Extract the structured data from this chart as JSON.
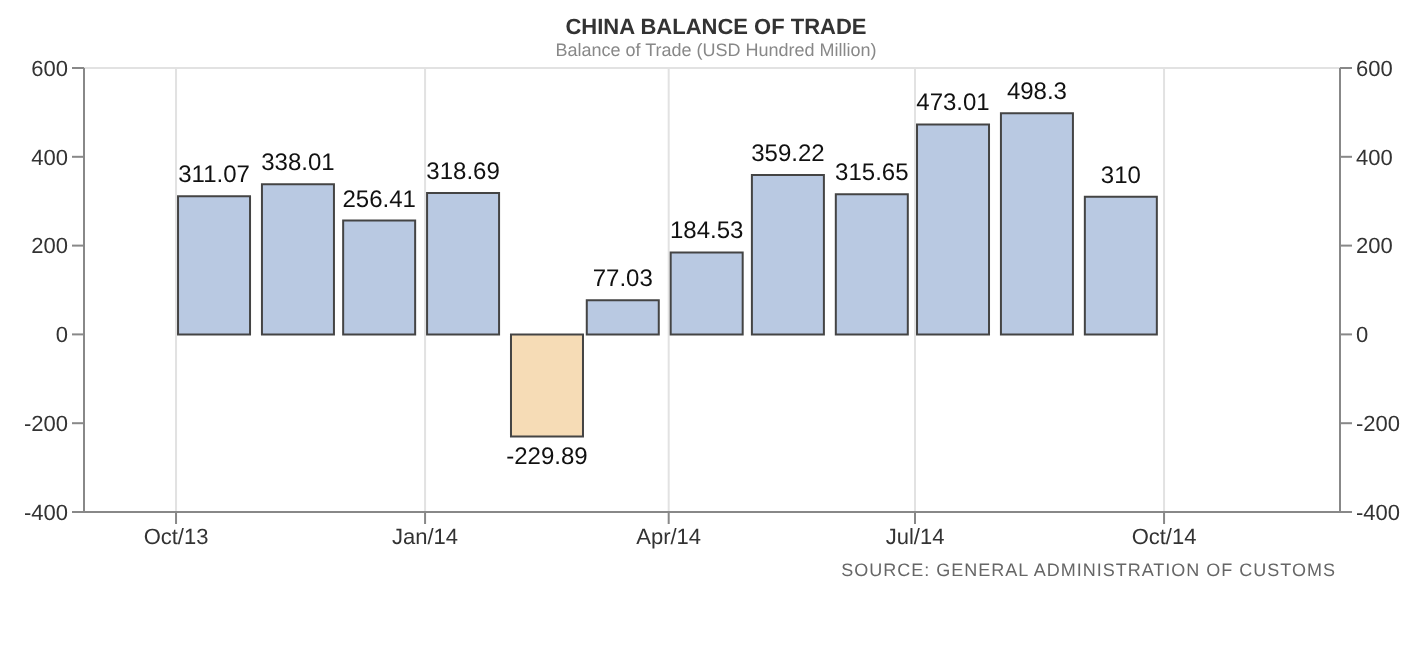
{
  "chart_data": {
    "type": "bar",
    "title": "CHINA BALANCE OF TRADE",
    "subtitle": "Balance of Trade (USD Hundred Million)",
    "x": [
      "2013-10-15",
      "2013-11-15",
      "2013-12-15",
      "2014-01-15",
      "2014-02-15",
      "2014-03-15",
      "2014-04-15",
      "2014-05-15",
      "2014-06-15",
      "2014-07-15",
      "2014-08-15",
      "2014-09-15"
    ],
    "values": [
      311.07,
      338.01,
      256.41,
      318.69,
      -229.89,
      77.03,
      184.53,
      359.22,
      315.65,
      473.01,
      498.3,
      310
    ],
    "colors": [
      "#b9c9e2",
      "#b9c9e2",
      "#b9c9e2",
      "#b9c9e2",
      "#f6dcb6",
      "#b9c9e2",
      "#b9c9e2",
      "#b9c9e2",
      "#b9c9e2",
      "#b9c9e2",
      "#b9c9e2",
      "#b9c9e2"
    ],
    "data_labels": true,
    "xlim": [
      "2013-08-28",
      "2014-12-05"
    ],
    "xticks": [
      {
        "value": "2013-10-01",
        "label": "Oct/13"
      },
      {
        "value": "2014-01-01",
        "label": "Jan/14"
      },
      {
        "value": "2014-04-01",
        "label": "Apr/14"
      },
      {
        "value": "2014-07-01",
        "label": "Jul/14"
      },
      {
        "value": "2014-10-01",
        "label": "Oct/14"
      }
    ],
    "ylim": [
      -400,
      600
    ],
    "yticks": [
      -400,
      -200,
      0,
      200,
      400,
      600
    ],
    "y2lim": [
      -400,
      600
    ],
    "y2ticks": [
      -400,
      -200,
      0,
      200,
      400,
      600
    ],
    "grid": true,
    "annotations": [
      "SOURCE: GENERAL ADMINISTRATION OF CUSTOMS"
    ]
  }
}
